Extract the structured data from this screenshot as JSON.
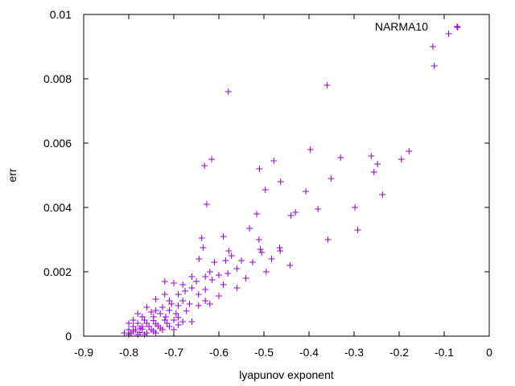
{
  "chart_data": {
    "type": "scatter",
    "title": "",
    "xlabel": "lyapunov exponent",
    "ylabel": "err",
    "xlim": [
      -0.9,
      0
    ],
    "ylim": [
      0,
      0.01
    ],
    "x_ticks": [
      -0.9,
      -0.8,
      -0.7,
      -0.6,
      -0.5,
      -0.4,
      -0.3,
      -0.2,
      -0.1,
      0
    ],
    "x_tick_labels": [
      "-0.9",
      "-0.8",
      "-0.7",
      "-0.6",
      "-0.5",
      "-0.4",
      "-0.3",
      "-0.2",
      "-0.1",
      "0"
    ],
    "y_ticks": [
      0,
      0.002,
      0.004,
      0.006,
      0.008,
      0.01
    ],
    "y_tick_labels": [
      "0",
      "0.002",
      "0.004",
      "0.006",
      "0.008",
      "0.01"
    ],
    "grid": false,
    "legend_position": "top-right",
    "marker": "plus",
    "series": [
      {
        "name": "NARMA10",
        "color": "#9400D3",
        "points": [
          [
            -0.07,
            0.0096
          ],
          [
            -0.09,
            0.0094
          ],
          [
            -0.125,
            0.009
          ],
          [
            -0.122,
            0.0084
          ],
          [
            -0.36,
            0.0078
          ],
          [
            -0.579,
            0.0076
          ],
          [
            -0.397,
            0.0058
          ],
          [
            -0.178,
            0.00575
          ],
          [
            -0.262,
            0.0056
          ],
          [
            -0.33,
            0.00555
          ],
          [
            -0.195,
            0.0055
          ],
          [
            -0.616,
            0.0055
          ],
          [
            -0.478,
            0.00545
          ],
          [
            -0.248,
            0.00535
          ],
          [
            -0.632,
            0.0053
          ],
          [
            -0.51,
            0.0052
          ],
          [
            -0.256,
            0.0051
          ],
          [
            -0.351,
            0.0049
          ],
          [
            -0.463,
            0.0048
          ],
          [
            -0.497,
            0.00455
          ],
          [
            -0.407,
            0.0045
          ],
          [
            -0.237,
            0.0044
          ],
          [
            -0.627,
            0.0041
          ],
          [
            -0.298,
            0.004
          ],
          [
            -0.38,
            0.00395
          ],
          [
            -0.43,
            0.00385
          ],
          [
            -0.516,
            0.0038
          ],
          [
            -0.44,
            0.00375
          ],
          [
            -0.532,
            0.00335
          ],
          [
            -0.292,
            0.0033
          ],
          [
            -0.59,
            0.0031
          ],
          [
            -0.638,
            0.00305
          ],
          [
            -0.511,
            0.003
          ],
          [
            -0.358,
            0.003
          ],
          [
            -0.635,
            0.00275
          ],
          [
            -0.465,
            0.00275
          ],
          [
            -0.508,
            0.0027
          ],
          [
            -0.578,
            0.00265
          ],
          [
            -0.505,
            0.0026
          ],
          [
            -0.464,
            0.00265
          ],
          [
            -0.572,
            0.0025
          ],
          [
            -0.483,
            0.0024
          ],
          [
            -0.55,
            0.00235
          ],
          [
            -0.644,
            0.0024
          ],
          [
            -0.585,
            0.00235
          ],
          [
            -0.61,
            0.0023
          ],
          [
            -0.525,
            0.0023
          ],
          [
            -0.442,
            0.0022
          ],
          [
            -0.56,
            0.0021
          ],
          [
            -0.62,
            0.002
          ],
          [
            -0.495,
            0.002
          ],
          [
            -0.6,
            0.0019
          ],
          [
            -0.58,
            0.00195
          ],
          [
            -0.63,
            0.00185
          ],
          [
            -0.66,
            0.00185
          ],
          [
            -0.54,
            0.0018
          ],
          [
            -0.615,
            0.00175
          ],
          [
            -0.65,
            0.0017
          ],
          [
            -0.72,
            0.0017
          ],
          [
            -0.68,
            0.0016
          ],
          [
            -0.7,
            0.00165
          ],
          [
            -0.59,
            0.0016
          ],
          [
            -0.66,
            0.0015
          ],
          [
            -0.56,
            0.0015
          ],
          [
            -0.63,
            0.00145
          ],
          [
            -0.675,
            0.0014
          ],
          [
            -0.72,
            0.0013
          ],
          [
            -0.69,
            0.0013
          ],
          [
            -0.645,
            0.0013
          ],
          [
            -0.6,
            0.00125
          ],
          [
            -0.74,
            0.00115
          ],
          [
            -0.71,
            0.0011
          ],
          [
            -0.68,
            0.0011
          ],
          [
            -0.63,
            0.0011
          ],
          [
            -0.705,
            0.001
          ],
          [
            -0.665,
            0.001
          ],
          [
            -0.62,
            0.001
          ],
          [
            -0.76,
            0.0009
          ],
          [
            -0.725,
            0.0009
          ],
          [
            -0.69,
            0.00095
          ],
          [
            -0.645,
            0.00095
          ],
          [
            -0.74,
            0.0008
          ],
          [
            -0.71,
            0.0008
          ],
          [
            -0.672,
            0.00078
          ],
          [
            -0.78,
            0.0007
          ],
          [
            -0.75,
            0.00075
          ],
          [
            -0.73,
            0.0007
          ],
          [
            -0.695,
            0.0007
          ],
          [
            -0.77,
            0.0006
          ],
          [
            -0.745,
            0.0006
          ],
          [
            -0.718,
            0.0006
          ],
          [
            -0.69,
            0.00058
          ],
          [
            -0.79,
            0.0005
          ],
          [
            -0.765,
            0.0005
          ],
          [
            -0.745,
            0.00048
          ],
          [
            -0.72,
            0.0005
          ],
          [
            -0.7,
            0.0005
          ],
          [
            -0.68,
            0.00045
          ],
          [
            -0.66,
            0.00045
          ],
          [
            -0.8,
            0.0004
          ],
          [
            -0.78,
            0.0004
          ],
          [
            -0.76,
            0.0004
          ],
          [
            -0.74,
            0.00038
          ],
          [
            -0.715,
            0.0004
          ],
          [
            -0.69,
            0.00035
          ],
          [
            -0.79,
            0.0003
          ],
          [
            -0.77,
            0.0003
          ],
          [
            -0.755,
            0.0003
          ],
          [
            -0.735,
            0.00032
          ],
          [
            -0.71,
            0.0003
          ],
          [
            -0.8,
            0.0002
          ],
          [
            -0.785,
            0.0002
          ],
          [
            -0.77,
            0.00022
          ],
          [
            -0.75,
            0.0002
          ],
          [
            -0.725,
            0.0002
          ],
          [
            -0.7,
            0.0002
          ],
          [
            -0.81,
            0.0001
          ],
          [
            -0.795,
            0.0001
          ],
          [
            -0.775,
            0.00012
          ],
          [
            -0.76,
            0.0001
          ],
          [
            -0.74,
            0.0001
          ],
          [
            -0.78,
            5e-05
          ],
          [
            -0.8,
            5e-05
          ],
          [
            -0.765,
            5e-05
          ],
          [
            -0.79,
            0.00015
          ],
          [
            -0.745,
            0.00015
          ],
          [
            -0.775,
            0.00025
          ],
          [
            -0.73,
            0.00025
          ]
        ]
      }
    ]
  }
}
